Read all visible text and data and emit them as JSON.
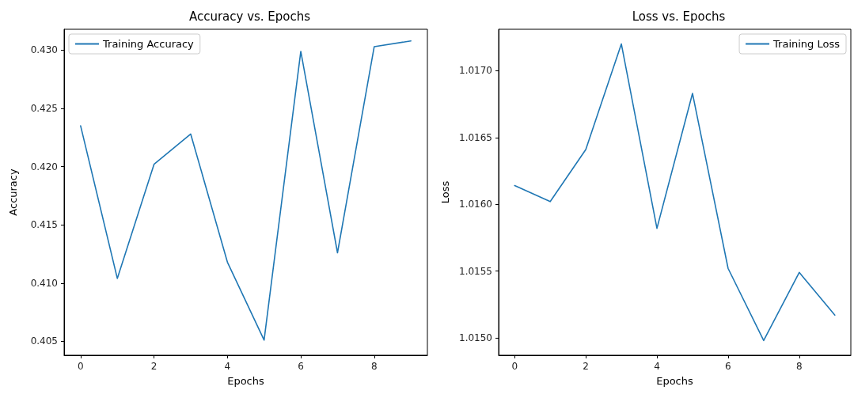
{
  "chart_data": [
    {
      "type": "line",
      "title": "Accuracy vs. Epochs",
      "xlabel": "Epochs",
      "ylabel": "Accuracy",
      "x": [
        0,
        1,
        2,
        3,
        4,
        5,
        6,
        7,
        8,
        9
      ],
      "series": [
        {
          "name": "Training Accuracy",
          "color": "#1f77b4",
          "values": [
            0.4235,
            0.4104,
            0.4202,
            0.4228,
            0.4118,
            0.4051,
            0.4299,
            0.4126,
            0.4303,
            0.4308
          ]
        }
      ],
      "xlim": [
        -0.45,
        9.45
      ],
      "xticks": [
        0,
        2,
        4,
        6,
        8
      ],
      "ylim": [
        0.4038,
        0.4318
      ],
      "yticks": [
        0.405,
        {
          "value": 0.41,
          "label": "0.410"
        },
        0.415,
        {
          "value": 0.42,
          "label": "0.420"
        },
        0.425,
        {
          "value": 0.43,
          "label": "0.430"
        }
      ],
      "legend": "top left",
      "grid": false,
      "marker": "none",
      "line_style": "solid"
    },
    {
      "type": "line",
      "title": "Loss vs. Epochs",
      "xlabel": "Epochs",
      "ylabel": "Loss",
      "x": [
        0,
        1,
        2,
        3,
        4,
        5,
        6,
        7,
        8,
        9
      ],
      "series": [
        {
          "name": "Training Loss",
          "color": "#1f77b4",
          "values": [
            1.01614,
            1.01602,
            1.01641,
            1.0172,
            1.01582,
            1.01683,
            1.01552,
            1.01498,
            1.01549,
            1.01517
          ]
        }
      ],
      "xlim": [
        -0.45,
        9.45
      ],
      "xticks": [
        0,
        2,
        4,
        6,
        8
      ],
      "ylim": [
        1.01487,
        1.01731
      ],
      "yticks": [
        {
          "value": 1.015,
          "label": "1.0150"
        },
        {
          "value": 1.0155,
          "label": "1.0155"
        },
        {
          "value": 1.016,
          "label": "1.0160"
        },
        {
          "value": 1.0165,
          "label": "1.0165"
        },
        {
          "value": 1.017,
          "label": "1.0170"
        }
      ],
      "legend": "top right",
      "grid": false,
      "marker": "none",
      "line_style": "solid"
    }
  ]
}
